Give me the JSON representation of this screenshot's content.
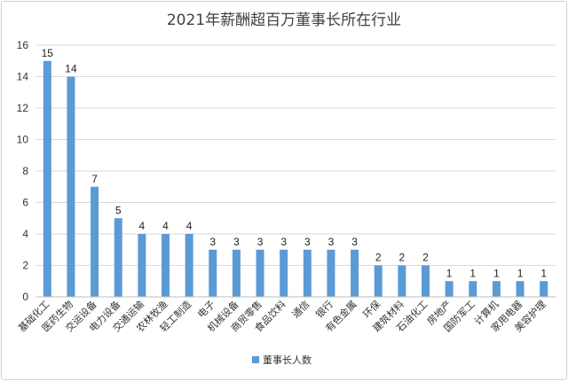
{
  "chart_data": {
    "type": "bar",
    "title": "2021年薪酬超百万董事长所在行业",
    "categories": [
      "基础化工",
      "医药生物",
      "交运设备",
      "电力设备",
      "交通运输",
      "农林牧渔",
      "轻工制造",
      "电子",
      "机械设备",
      "商贸零售",
      "食品饮料",
      "通信",
      "银行",
      "有色金属",
      "环保",
      "建筑材料",
      "石油化工",
      "房地产",
      "国防军工",
      "计算机",
      "家用电器",
      "美容护理"
    ],
    "series": [
      {
        "name": "董事长人数",
        "values": [
          15,
          14,
          7,
          5,
          4,
          4,
          4,
          3,
          3,
          3,
          3,
          3,
          3,
          3,
          2,
          2,
          2,
          1,
          1,
          1,
          1,
          1
        ]
      }
    ],
    "ylim": [
      0,
      16
    ],
    "yticks": [
      0,
      2,
      4,
      6,
      8,
      10,
      12,
      14,
      16
    ],
    "grid": true,
    "legend_position": "bottom",
    "colors": {
      "bar": "#5b9bd5",
      "grid": "#d9d9d9",
      "axis": "#bfbfbf"
    }
  }
}
